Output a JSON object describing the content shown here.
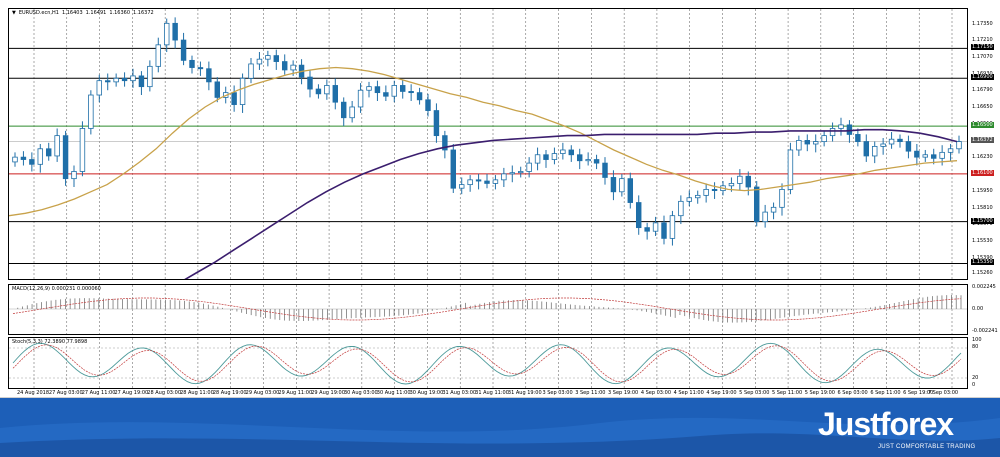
{
  "chart_title": {
    "symbol": "EURUSD.ecn,H1",
    "ohlc": [
      "1.16403",
      "1.16491",
      "1.16360",
      "1.16372"
    ]
  },
  "colors": {
    "bull": "#ffffff",
    "bear": "#1f6fa8",
    "ma_slow": "#3b1e6e",
    "ma_fast": "#c8a24a",
    "res_green": "#2e8b2e",
    "sup_red": "#cc1f1f",
    "stoch_main": "#4d9a9a",
    "stoch_signal": "#c23b3b"
  },
  "price_axis": {
    "ticks": [
      "1.17350",
      "1.17210",
      "1.17070",
      "1.16930",
      "1.16790",
      "1.16650",
      "1.16510",
      "1.16370",
      "1.16230",
      "1.16090",
      "1.15950",
      "1.15810",
      "1.15670",
      "1.15530",
      "1.15390",
      "1.15260"
    ],
    "tags": [
      {
        "label": "1.17150",
        "kind": "black"
      },
      {
        "label": "1.16900",
        "kind": "black"
      },
      {
        "label": "1.16500",
        "kind": "green"
      },
      {
        "label": "1.16372",
        "kind": "current"
      },
      {
        "label": "1.16100",
        "kind": "red"
      },
      {
        "label": "1.15700",
        "kind": "black"
      },
      {
        "label": "1.15350",
        "kind": "black"
      }
    ]
  },
  "macd": {
    "label": "MACD(12,26,9) 0.000231 0.000060",
    "ticks": [
      "0.002245",
      "0.00",
      "-0.002241"
    ]
  },
  "stoch": {
    "label": "Stoch(5,3,3) 72.3890 77.9898",
    "ticks": [
      "100",
      "80",
      "20",
      "0"
    ]
  },
  "time_axis": [
    "24 Aug 2018",
    "27 Aug 03:00",
    "27 Aug 11:00",
    "27 Aug 19:00",
    "28 Aug 03:00",
    "28 Aug 11:00",
    "28 Aug 19:00",
    "29 Aug 03:00",
    "29 Aug 11:00",
    "29 Aug 19:00",
    "30 Aug 03:00",
    "30 Aug 11:00",
    "30 Aug 19:00",
    "31 Aug 03:00",
    "31 Aug 11:00",
    "31 Aug 19:00",
    "3 Sep 03:00",
    "3 Sep 11:00",
    "3 Sep 19:00",
    "4 Sep 03:00",
    "4 Sep 11:00",
    "4 Sep 19:00",
    "5 Sep 03:00",
    "5 Sep 11:00",
    "5 Sep 19:00",
    "6 Sep 03:00",
    "6 Sep 11:00",
    "6 Sep 19:00",
    "7 Sep 03:00"
  ],
  "chart_data": {
    "type": "line",
    "title": "",
    "x_labels": [
      "24 Aug 2018",
      "27 Aug 03:00",
      "27 Aug 11:00",
      "27 Aug 19:00",
      "28 Aug 03:00",
      "28 Aug 11:00",
      "28 Aug 19:00",
      "29 Aug 03:00",
      "29 Aug 11:00",
      "29 Aug 19:00",
      "30 Aug 03:00",
      "30 Aug 11:00",
      "30 Aug 19:00",
      "31 Aug 03:00",
      "31 Aug 11:00",
      "31 Aug 19:00",
      "3 Sep 03:00",
      "3 Sep 11:00",
      "3 Sep 19:00",
      "4 Sep 03:00",
      "4 Sep 11:00",
      "4 Sep 19:00",
      "5 Sep 03:00",
      "5 Sep 11:00",
      "5 Sep 19:00",
      "6 Sep 03:00",
      "6 Sep 11:00",
      "6 Sep 19:00",
      "7 Sep 03:00"
    ],
    "ylim": [
      1.1522,
      1.1748
    ],
    "close_series": [
      1.1624,
      1.1622,
      1.1618,
      1.1631,
      1.1625,
      1.1642,
      1.1606,
      1.1612,
      1.1648,
      1.1676,
      1.1688,
      1.1687,
      1.169,
      1.1688,
      1.1692,
      1.1683,
      1.17,
      1.1718,
      1.1736,
      1.1722,
      1.1705,
      1.1699,
      1.1698,
      1.1687,
      1.1674,
      1.1678,
      1.1668,
      1.169,
      1.1702,
      1.1706,
      1.1709,
      1.1704,
      1.1697,
      1.1701,
      1.1691,
      1.1681,
      1.1677,
      1.1684,
      1.167,
      1.1657,
      1.1666,
      1.168,
      1.1683,
      1.1678,
      1.1675,
      1.1684,
      1.1679,
      1.1678,
      1.1672,
      1.1663,
      1.1642,
      1.163,
      1.1598,
      1.1601,
      1.1605,
      1.1604,
      1.1602,
      1.1605,
      1.161,
      1.1611,
      1.1612,
      1.1619,
      1.1626,
      1.1622,
      1.1627,
      1.163,
      1.1626,
      1.1621,
      1.1622,
      1.1619,
      1.1607,
      1.1595,
      1.1606,
      1.1586,
      1.1565,
      1.1562,
      1.1569,
      1.1556,
      1.1575,
      1.1587,
      1.159,
      1.1592,
      1.1597,
      1.1596,
      1.16,
      1.1602,
      1.1608,
      1.1599,
      1.157,
      1.1578,
      1.1582,
      1.1597,
      1.163,
      1.1638,
      1.1635,
      1.1637,
      1.1642,
      1.1648,
      1.1651,
      1.1643,
      1.1637,
      1.1625,
      1.1633,
      1.1635,
      1.1639,
      1.1637,
      1.1629,
      1.1624,
      1.1626,
      1.1623,
      1.1628,
      1.1631,
      1.1637
    ],
    "ma_fast": [
      1.1575,
      1.1577,
      1.158,
      1.1584,
      1.1589,
      1.1595,
      1.1601,
      1.161,
      1.162,
      1.1631,
      1.1644,
      1.1656,
      1.1666,
      1.1674,
      1.168,
      1.1685,
      1.1689,
      1.1693,
      1.1696,
      1.1698,
      1.1699,
      1.1698,
      1.1696,
      1.1693,
      1.1689,
      1.1685,
      1.1681,
      1.1677,
      1.1674,
      1.167,
      1.1667,
      1.1663,
      1.166,
      1.1655,
      1.165,
      1.1644,
      1.1637,
      1.163,
      1.1624,
      1.1618,
      1.1613,
      1.1609,
      1.1604,
      1.16,
      1.1597,
      1.1596,
      1.1597,
      1.1599,
      1.1601,
      1.1603,
      1.1606,
      1.1608,
      1.161,
      1.1613,
      1.1615,
      1.1617,
      1.1619,
      1.162,
      1.1621
    ],
    "ma_slow": [
      1.151,
      1.1518,
      1.1527,
      1.1536,
      1.1546,
      1.1556,
      1.1566,
      1.1576,
      1.1586,
      1.1595,
      1.1603,
      1.161,
      1.1616,
      1.1622,
      1.1627,
      1.1631,
      1.1634,
      1.1636,
      1.1638,
      1.1639,
      1.164,
      1.1641,
      1.1642,
      1.1642,
      1.1643,
      1.1643,
      1.1643,
      1.1643,
      1.1643,
      1.1643,
      1.1644,
      1.1644,
      1.1645,
      1.1645,
      1.1646,
      1.1646,
      1.1646,
      1.1646,
      1.1647,
      1.1647,
      1.1646,
      1.1644,
      1.1641,
      1.1637
    ],
    "hlines": [
      1.1715,
      1.169,
      1.165,
      1.161,
      1.157,
      1.1535
    ],
    "current_price": 1.16372
  },
  "banner": {
    "brand": "Justforex",
    "tagline": "JUST COMFORTABLE TRADING"
  }
}
